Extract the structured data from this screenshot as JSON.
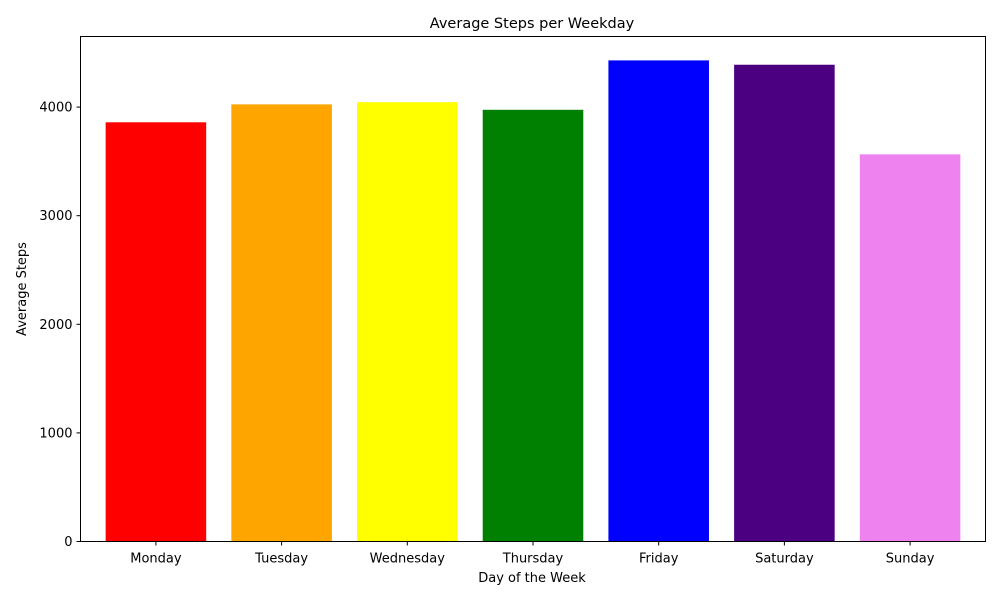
{
  "chart_data": {
    "type": "bar",
    "title": "Average Steps per Weekday",
    "xlabel": "Day of the Week",
    "ylabel": "Average Steps",
    "categories": [
      "Monday",
      "Tuesday",
      "Wednesday",
      "Thursday",
      "Friday",
      "Saturday",
      "Sunday"
    ],
    "values": [
      3860,
      4025,
      4045,
      3975,
      4430,
      4390,
      3565
    ],
    "colors": [
      "#ff0000",
      "#ffa500",
      "#ffff00",
      "#008000",
      "#0000ff",
      "#4b0082",
      "#ee82ee"
    ],
    "ylim": [
      0,
      4650
    ],
    "yticks": [
      0,
      1000,
      2000,
      3000,
      4000
    ],
    "ytick_labels": [
      "0",
      "1000",
      "2000",
      "3000",
      "4000"
    ],
    "grid": false,
    "legend": "none"
  }
}
